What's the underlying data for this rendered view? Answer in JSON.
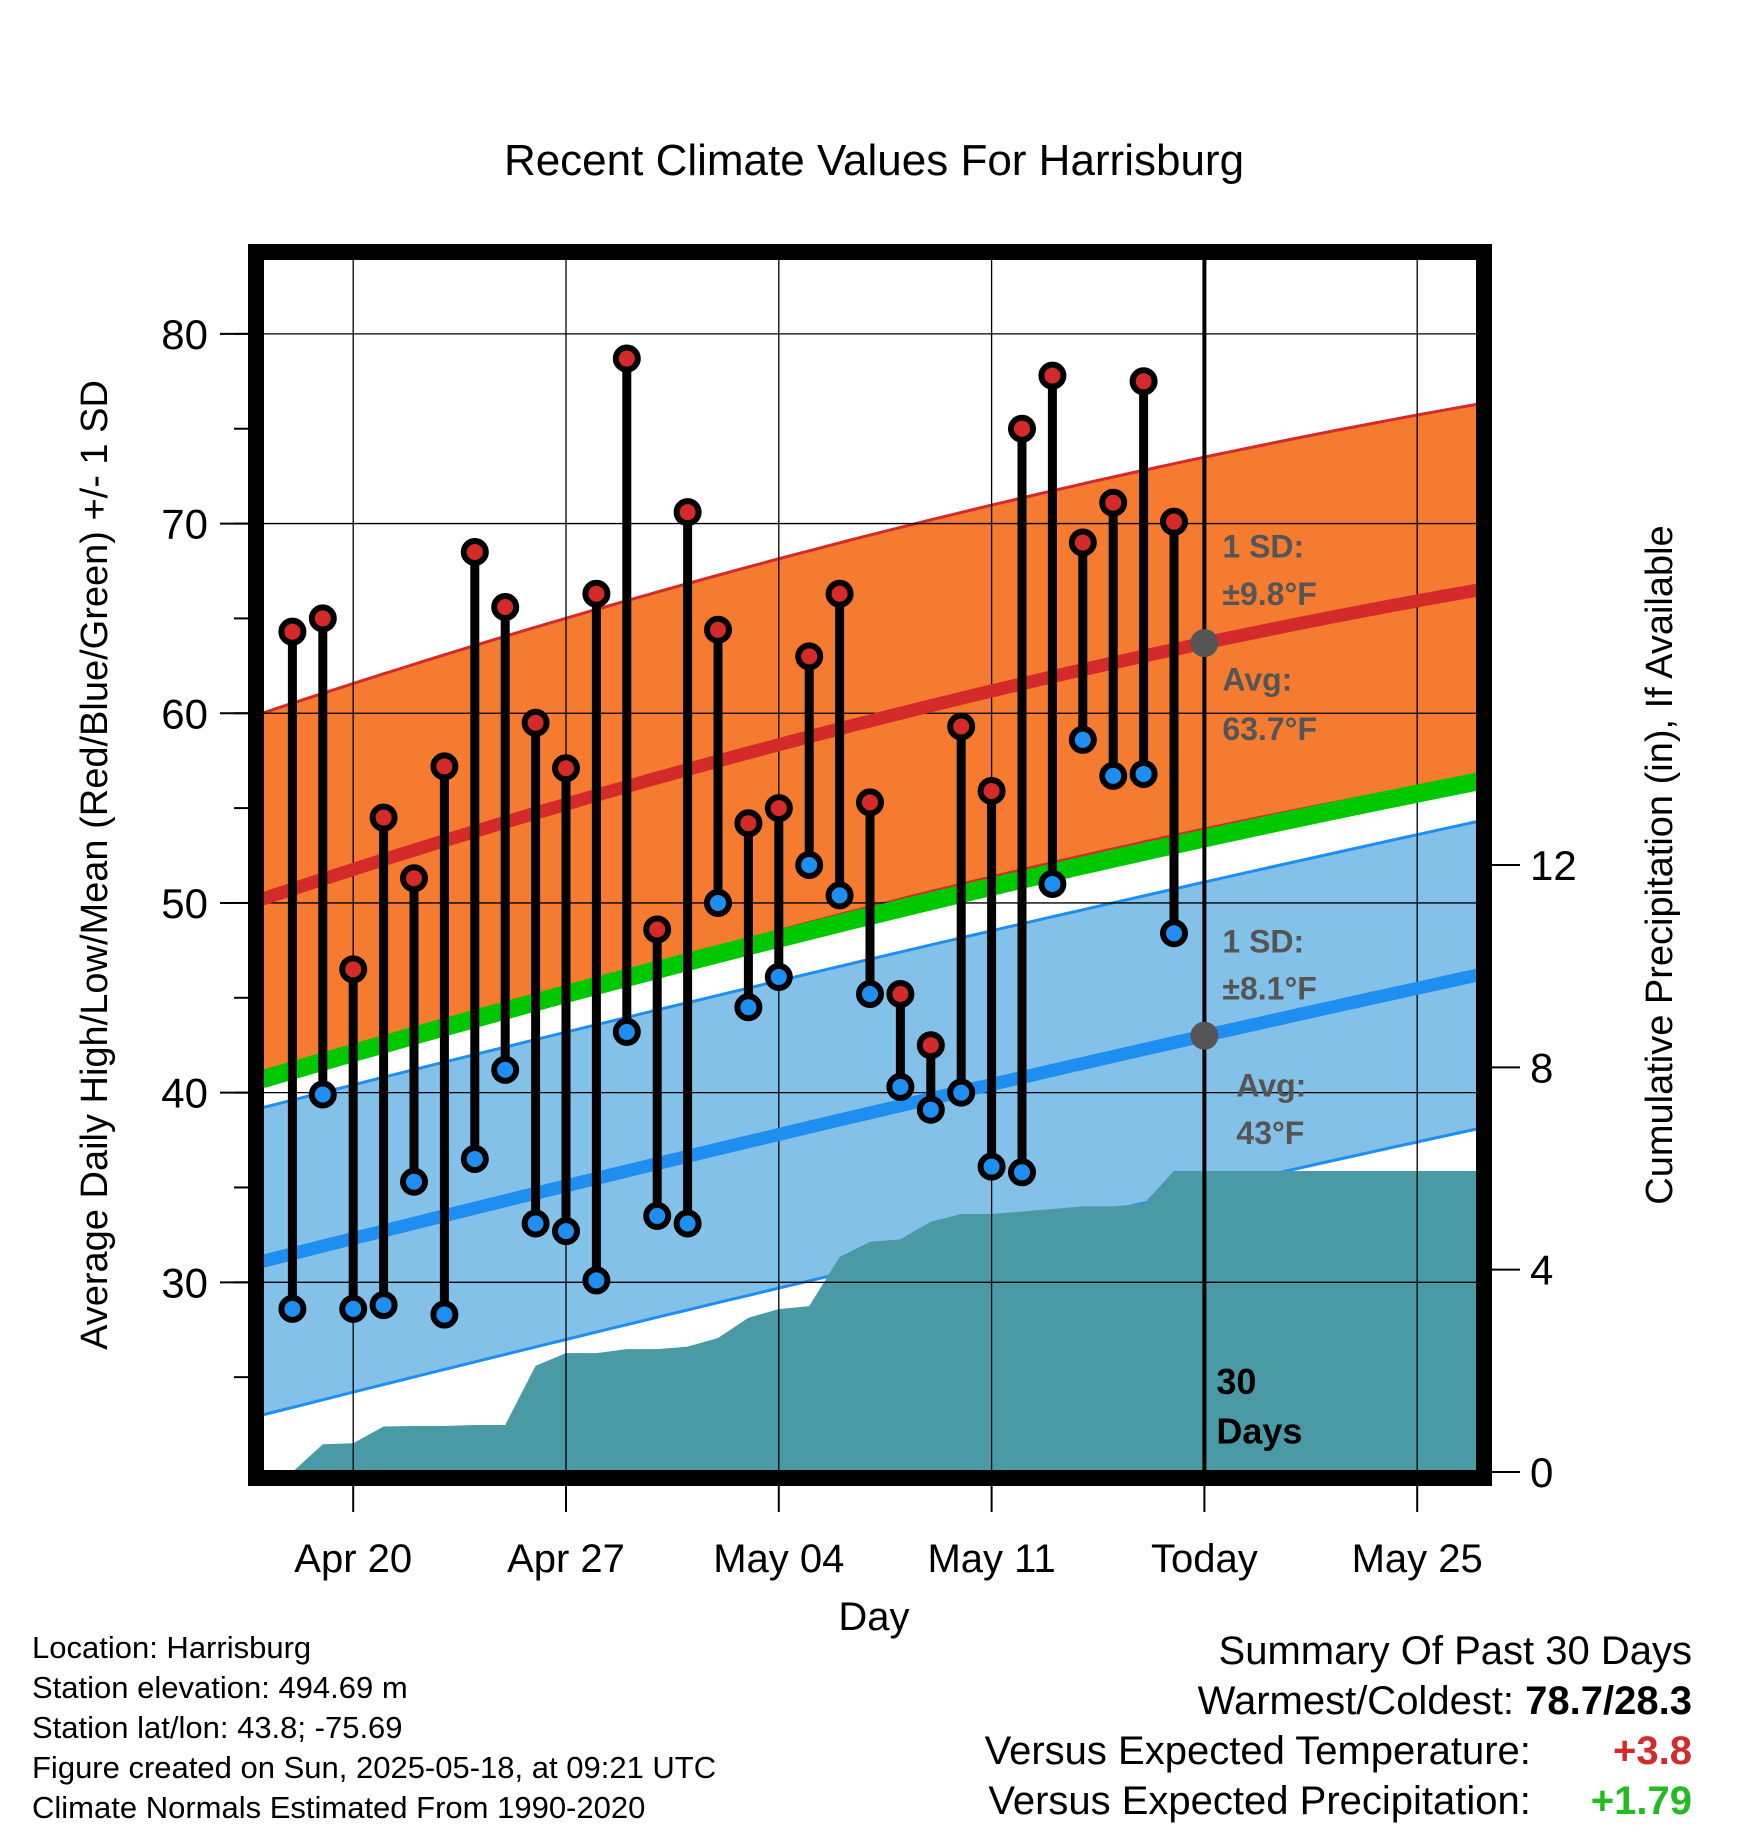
{
  "chart_data": {
    "type": "line",
    "title": "Recent Climate Values For Harrisburg",
    "xlabel": "Day",
    "ylabel_left": "Average Daily High/Low/Mean (Red/Blue/Green) +/- 1 SD",
    "ylabel_right": "Cumulative Precipitation (in), If Available",
    "y_left_range": [
      20,
      84
    ],
    "y_right_range": [
      0,
      24
    ],
    "x_range": [
      "2025-04-17",
      "2025-05-27"
    ],
    "y_left_ticks": [
      "30",
      "40",
      "50",
      "60",
      "70",
      "80"
    ],
    "y_right_ticks": [
      "0",
      "4",
      "8",
      "12"
    ],
    "x_ticks": [
      {
        "date": "2025-04-20",
        "label": "Apr 20"
      },
      {
        "date": "2025-04-27",
        "label": "Apr 27"
      },
      {
        "date": "2025-05-04",
        "label": "May 04"
      },
      {
        "date": "2025-05-11",
        "label": "May 11"
      },
      {
        "date": "2025-05-18",
        "label": "Today"
      },
      {
        "date": "2025-05-25",
        "label": "May 25"
      }
    ],
    "today": "2025-05-18",
    "window_label": "30 Days",
    "grid": true,
    "dates": [
      "2025-04-18",
      "2025-04-19",
      "2025-04-20",
      "2025-04-21",
      "2025-04-22",
      "2025-04-23",
      "2025-04-24",
      "2025-04-25",
      "2025-04-26",
      "2025-04-27",
      "2025-04-28",
      "2025-04-29",
      "2025-04-30",
      "2025-05-01",
      "2025-05-02",
      "2025-05-03",
      "2025-05-04",
      "2025-05-05",
      "2025-05-06",
      "2025-05-07",
      "2025-05-08",
      "2025-05-09",
      "2025-05-10",
      "2025-05-11",
      "2025-05-12",
      "2025-05-13",
      "2025-05-14",
      "2025-05-15",
      "2025-05-16",
      "2025-05-17"
    ],
    "highs": [
      64.3,
      65.0,
      46.5,
      54.5,
      51.3,
      57.2,
      68.5,
      65.6,
      59.5,
      57.1,
      66.3,
      78.7,
      48.6,
      70.6,
      64.4,
      54.2,
      55.0,
      63.0,
      66.3,
      55.3,
      45.2,
      42.5,
      59.3,
      55.9,
      75.0,
      77.8,
      69.0,
      71.1,
      77.5,
      70.1
    ],
    "lows": [
      28.6,
      39.9,
      28.6,
      28.8,
      35.3,
      28.3,
      36.5,
      41.2,
      33.1,
      32.7,
      30.1,
      43.2,
      33.5,
      33.1,
      50.0,
      44.5,
      46.1,
      52.0,
      50.4,
      45.2,
      40.3,
      39.1,
      40.0,
      36.1,
      35.8,
      51.0,
      58.6,
      56.7,
      56.8,
      48.4
    ],
    "normal_high": {
      "dates": [
        "2025-04-17",
        "2025-05-18",
        "2025-05-27"
      ],
      "mean": [
        50.2,
        63.7,
        66.5
      ],
      "sd": 9.8,
      "label": "1 SD:",
      "sd_label": "±9.8°F",
      "avg_label": "Avg:",
      "avg_value": "63.7°F"
    },
    "normal_low": {
      "dates": [
        "2025-04-17",
        "2025-05-18",
        "2025-05-27"
      ],
      "mean": [
        31.1,
        43.0,
        46.2
      ],
      "sd": 8.1,
      "label": "1 SD:",
      "sd_label": "±8.1°F",
      "avg_label": "Avg:",
      "avg_value": "43°F"
    },
    "normal_mean": {
      "dates": [
        "2025-04-17",
        "2025-05-18",
        "2025-05-27"
      ],
      "values": [
        40.7,
        53.4,
        56.4
      ]
    },
    "precip_cumulative": {
      "dates": [
        "2025-04-18",
        "2025-04-19",
        "2025-04-20",
        "2025-04-21",
        "2025-04-22",
        "2025-04-23",
        "2025-04-24",
        "2025-04-25",
        "2025-04-26",
        "2025-04-27",
        "2025-04-28",
        "2025-04-29",
        "2025-04-30",
        "2025-05-01",
        "2025-05-02",
        "2025-05-03",
        "2025-05-04",
        "2025-05-05",
        "2025-05-06",
        "2025-05-07",
        "2025-05-08",
        "2025-05-09",
        "2025-05-10",
        "2025-05-11",
        "2025-05-12",
        "2025-05-13",
        "2025-05-14",
        "2025-05-15",
        "2025-05-16",
        "2025-05-17",
        "2025-05-18",
        "2025-05-27"
      ],
      "values": [
        0.0,
        0.55,
        0.57,
        0.9,
        0.91,
        0.91,
        0.93,
        0.93,
        2.1,
        2.35,
        2.35,
        2.43,
        2.43,
        2.48,
        2.65,
        3.05,
        3.22,
        3.28,
        4.25,
        4.55,
        4.6,
        4.95,
        5.1,
        5.1,
        5.15,
        5.2,
        5.25,
        5.25,
        5.3,
        5.95,
        5.95,
        5.95
      ]
    },
    "colors": {
      "high_band": "#f47b2f",
      "high_mean": "#d42a2a",
      "low_band": "#84c1e8",
      "low_mean": "#1e8ff0",
      "normal_mean": "#00c800",
      "precip": "#4a9aa5",
      "high_marker": "#d42a2a",
      "low_marker": "#1e8ff0",
      "annotation": "#555555"
    }
  },
  "footer": {
    "location": "Location: Harrisburg",
    "elevation": "Station elevation: 494.69 m",
    "latlon": "Station lat/lon: 43.8; -75.69",
    "created": "Figure created on Sun, 2025-05-18, at 09:21 UTC",
    "normals": "Climate Normals Estimated From 1990-2020"
  },
  "summary": {
    "title": "Summary Of Past 30 Days",
    "warmest_coldest_label": "Warmest/Coldest:",
    "warmest_coldest_value": "78.7/28.3",
    "temp_label": "Versus Expected Temperature:",
    "temp_value": "+3.8",
    "precip_label": "Versus Expected Precipitation:",
    "precip_value": "+1.79"
  }
}
